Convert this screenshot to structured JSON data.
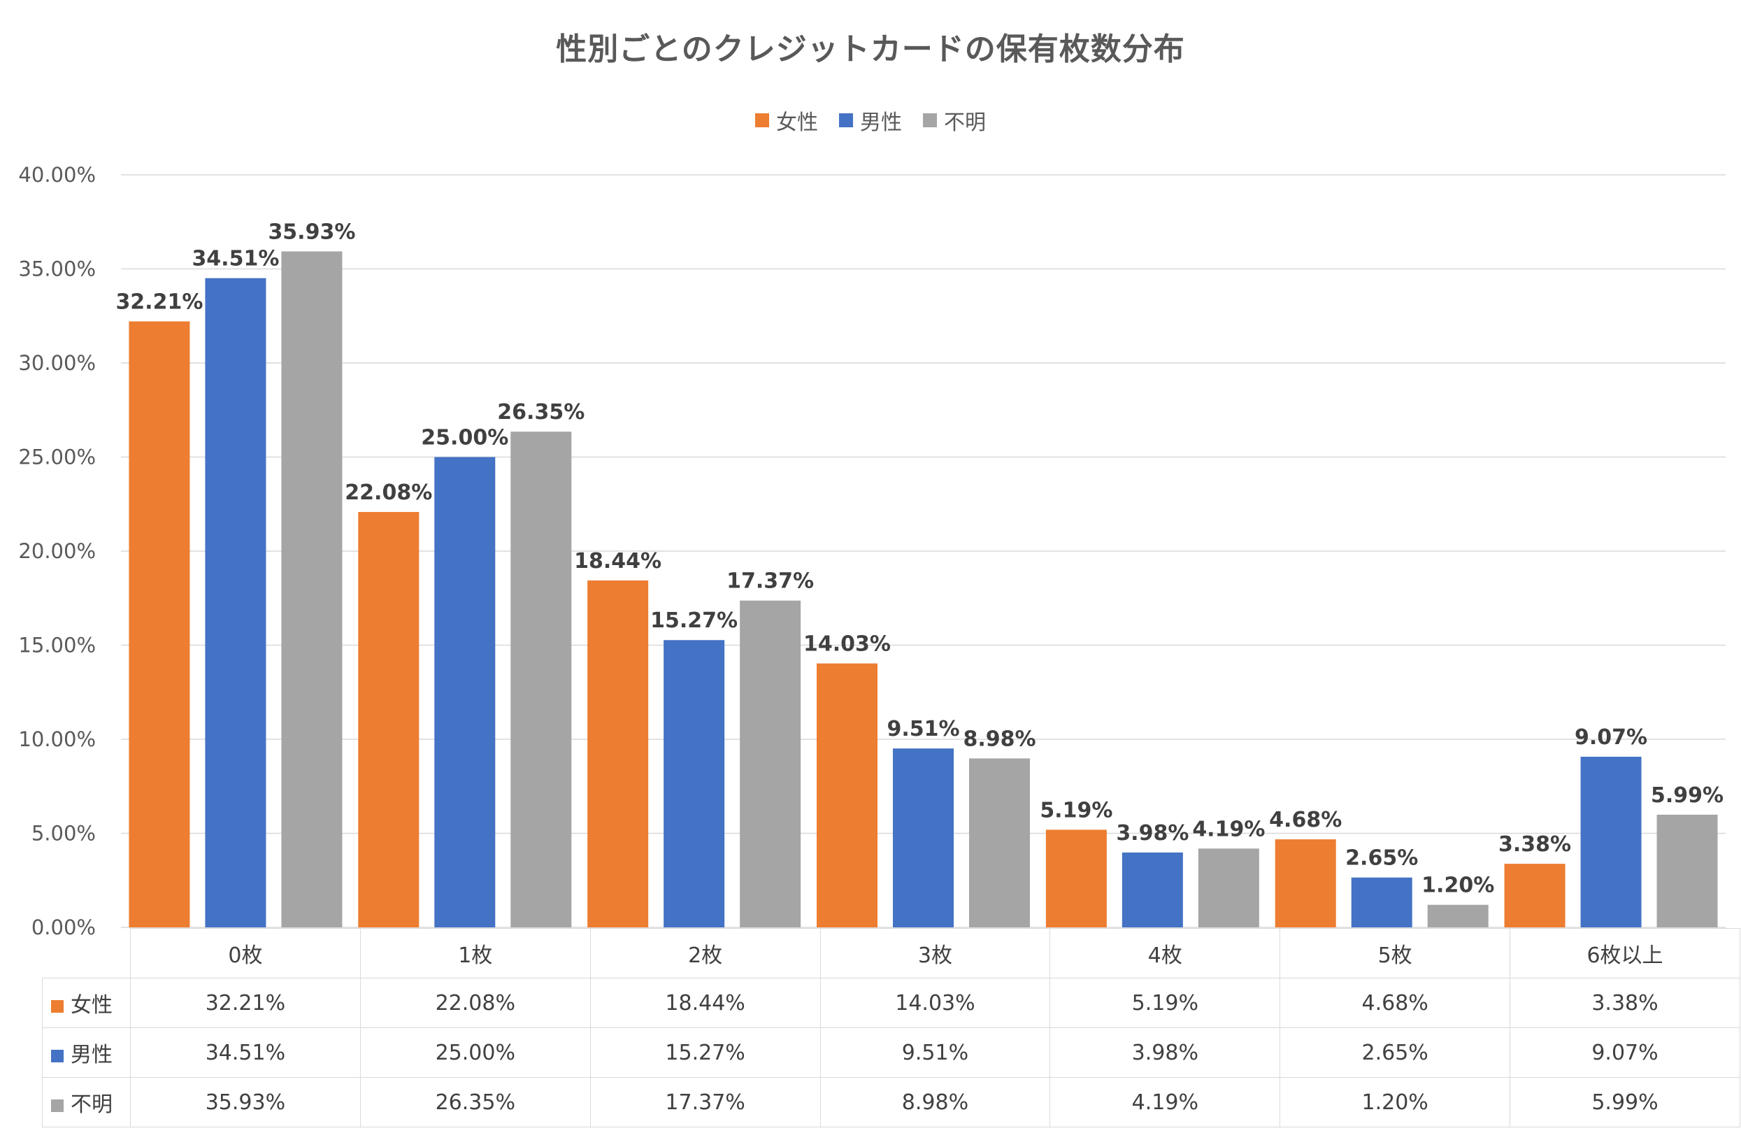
{
  "chart_data": {
    "type": "bar",
    "title": "性別ごとのクレジットカードの保有枚数分布",
    "categories": [
      "0枚",
      "1枚",
      "2枚",
      "3枚",
      "4枚",
      "5枚",
      "6枚以上"
    ],
    "series": [
      {
        "name": "女性",
        "color": "#ED7D31",
        "values": [
          32.21,
          22.08,
          18.44,
          14.03,
          5.19,
          4.68,
          3.38
        ],
        "labels": [
          "32.21%",
          "22.08%",
          "18.44%",
          "14.03%",
          "5.19%",
          "4.68%",
          "3.38%"
        ]
      },
      {
        "name": "男性",
        "color": "#4472C4",
        "values": [
          34.51,
          25.0,
          15.27,
          9.51,
          3.98,
          2.65,
          9.07
        ],
        "labels": [
          "34.51%",
          "25.00%",
          "15.27%",
          "9.51%",
          "3.98%",
          "2.65%",
          "9.07%"
        ]
      },
      {
        "name": "不明",
        "color": "#A5A5A5",
        "values": [
          35.93,
          26.35,
          17.37,
          8.98,
          4.19,
          1.2,
          5.99
        ],
        "labels": [
          "35.93%",
          "26.35%",
          "17.37%",
          "8.98%",
          "4.19%",
          "1.20%",
          "5.99%"
        ]
      }
    ],
    "ylim": [
      0,
      40
    ],
    "yticks": [
      "0.00%",
      "5.00%",
      "10.00%",
      "15.00%",
      "20.00%",
      "25.00%",
      "30.00%",
      "35.00%",
      "40.00%"
    ],
    "grid": true,
    "legend": "top-center",
    "data_table": true
  }
}
